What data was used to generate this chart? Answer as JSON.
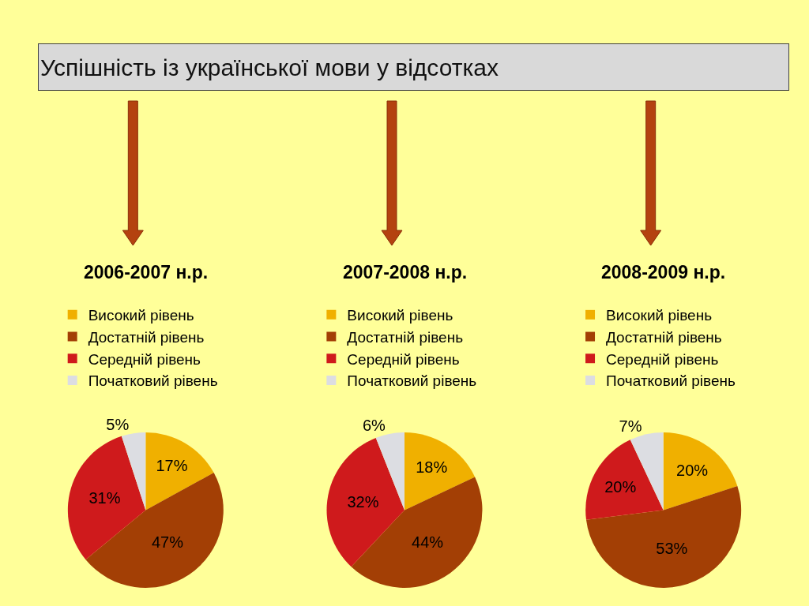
{
  "chart_data": [
    {
      "type": "other",
      "title": "Успішність із української мови у відсотках"
    },
    {
      "type": "pie",
      "title": "2006-2007 н.р.",
      "categories": [
        "Високий рівень",
        "Достатній рівень",
        "Середній рівень",
        "Початковий рівень"
      ],
      "values": [
        17,
        47,
        31,
        5
      ],
      "colors": [
        "#f0b000",
        "#a33f05",
        "#cf1a1c",
        "#dcdde2"
      ],
      "value_labels": [
        "17%",
        "47%",
        "31%",
        "5%"
      ],
      "legend": "top"
    },
    {
      "type": "pie",
      "title": "2007-2008 н.р.",
      "categories": [
        "Високий рівень",
        "Достатній рівень",
        "Середній рівень",
        "Початковий рівень"
      ],
      "values": [
        18,
        44,
        32,
        6
      ],
      "colors": [
        "#f0b000",
        "#a33f05",
        "#cf1a1c",
        "#dcdde2"
      ],
      "value_labels": [
        "18%",
        "44%",
        "32%",
        "6%"
      ],
      "legend": "top"
    },
    {
      "type": "pie",
      "title": "2008-2009 н.р.",
      "categories": [
        "Високий рівень",
        "Достатній рівень",
        "Середній рівень",
        "Початковий рівень"
      ],
      "values": [
        20,
        53,
        20,
        7
      ],
      "colors": [
        "#f0b000",
        "#a33f05",
        "#cf1a1c",
        "#dcdde2"
      ],
      "value_labels": [
        "20%",
        "53%",
        "20%",
        "7%"
      ],
      "legend": "top"
    }
  ]
}
